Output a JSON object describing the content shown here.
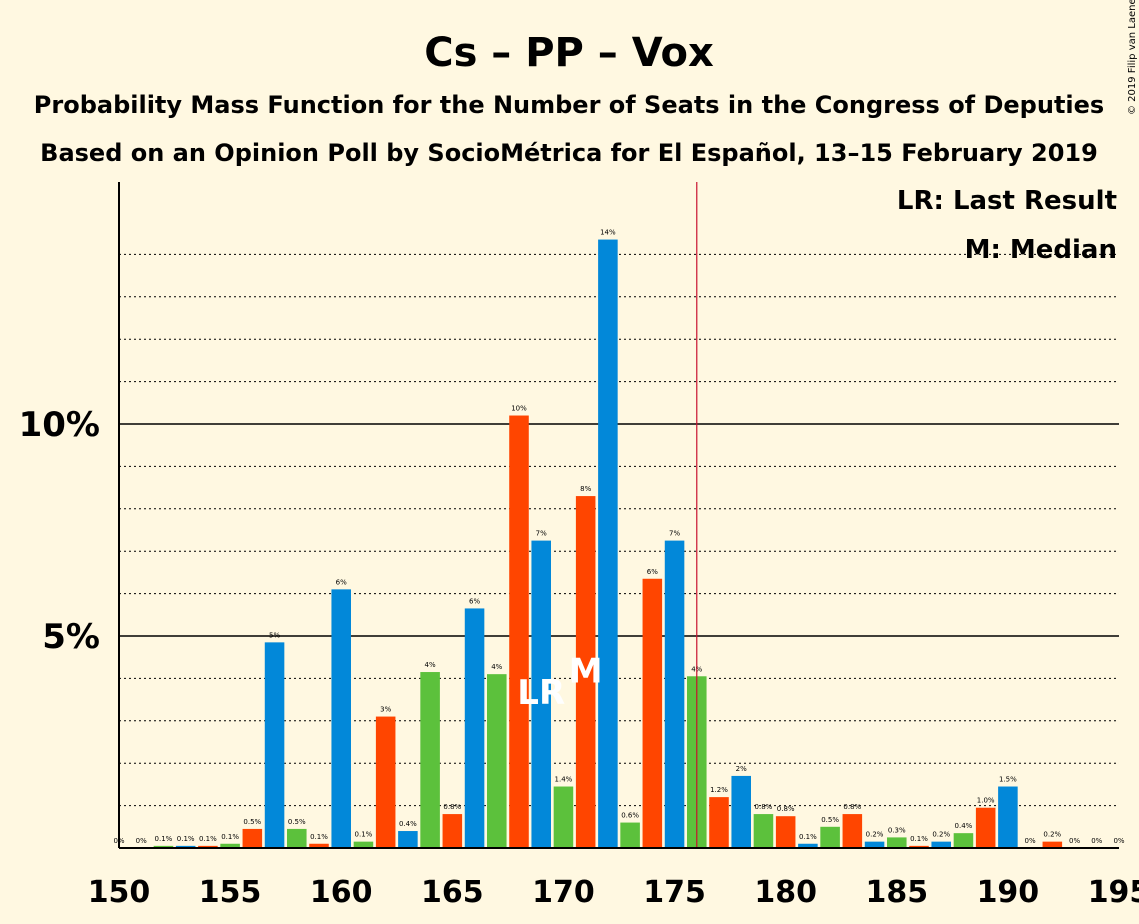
{
  "chart_data": {
    "type": "bar",
    "title": "Cs – PP – Vox",
    "subtitle": "Probability Mass Function for the Number of Seats in the Congress of Deputies",
    "subtitle2": "Based on an Opinion Poll by SocioMétrica for El Español, 13–15 February 2019",
    "copyright": "© 2019 Filip van Laenen",
    "legend": {
      "last_result": "LR: Last Result",
      "median": "M: Median"
    },
    "markers": {
      "last_result_label": "LR",
      "median_label": "M",
      "last_result_seat": 169,
      "median_seat": 171,
      "majority_line_seat": 176
    },
    "xlim": [
      150,
      195
    ],
    "ylim": [
      0,
      15.5
    ],
    "x_ticks": [
      "150",
      "155",
      "160",
      "165",
      "170",
      "175",
      "180",
      "185",
      "190",
      "195"
    ],
    "y_ticks": [
      {
        "value": 5,
        "label": "5%"
      },
      {
        "value": 10,
        "label": "10%"
      }
    ],
    "colors": {
      "blue": "#0288d9",
      "red": "#ff4500",
      "green": "#5cc13c",
      "background": "#fff8e1",
      "majority_line": "#c8102e",
      "axis": "#000000"
    },
    "bars": [
      {
        "seat": 150,
        "value": 0.0,
        "label": "0%",
        "color": "blue"
      },
      {
        "seat": 151,
        "value": 0.0,
        "label": "0%",
        "color": "red"
      },
      {
        "seat": 152,
        "value": 0.05,
        "label": "0.1%",
        "color": "green"
      },
      {
        "seat": 153,
        "value": 0.05,
        "label": "0.1%",
        "color": "blue"
      },
      {
        "seat": 154,
        "value": 0.05,
        "label": "0.1%",
        "color": "red"
      },
      {
        "seat": 155,
        "value": 0.1,
        "label": "0.1%",
        "color": "green"
      },
      {
        "seat": 156,
        "value": 0.45,
        "label": "0.5%",
        "color": "red"
      },
      {
        "seat": 157,
        "value": 4.85,
        "label": "5%",
        "color": "blue"
      },
      {
        "seat": 158,
        "value": 0.45,
        "label": "0.5%",
        "color": "green"
      },
      {
        "seat": 159,
        "value": 0.1,
        "label": "0.1%",
        "color": "red"
      },
      {
        "seat": 160,
        "value": 6.1,
        "label": "6%",
        "color": "blue"
      },
      {
        "seat": 161,
        "value": 0.15,
        "label": "0.1%",
        "color": "green"
      },
      {
        "seat": 162,
        "value": 3.1,
        "label": "3%",
        "color": "red"
      },
      {
        "seat": 163,
        "value": 0.4,
        "label": "0.4%",
        "color": "blue"
      },
      {
        "seat": 164,
        "value": 4.15,
        "label": "4%",
        "color": "green"
      },
      {
        "seat": 165,
        "value": 0.8,
        "label": "0.8%",
        "color": "red"
      },
      {
        "seat": 166,
        "value": 5.65,
        "label": "6%",
        "color": "blue"
      },
      {
        "seat": 167,
        "value": 4.1,
        "label": "4%",
        "color": "green"
      },
      {
        "seat": 168,
        "value": 10.2,
        "label": "10%",
        "color": "red"
      },
      {
        "seat": 169,
        "value": 7.25,
        "label": "7%",
        "color": "blue"
      },
      {
        "seat": 170,
        "value": 1.45,
        "label": "1.4%",
        "color": "green"
      },
      {
        "seat": 171,
        "value": 8.3,
        "label": "8%",
        "color": "red"
      },
      {
        "seat": 172,
        "value": 14.35,
        "label": "14%",
        "color": "blue"
      },
      {
        "seat": 173,
        "value": 0.6,
        "label": "0.6%",
        "color": "green"
      },
      {
        "seat": 174,
        "value": 6.35,
        "label": "6%",
        "color": "red"
      },
      {
        "seat": 175,
        "value": 7.25,
        "label": "7%",
        "color": "blue"
      },
      {
        "seat": 176,
        "value": 4.05,
        "label": "4%",
        "color": "green"
      },
      {
        "seat": 177,
        "value": 1.2,
        "label": "1.2%",
        "color": "red"
      },
      {
        "seat": 178,
        "value": 1.7,
        "label": "2%",
        "color": "blue"
      },
      {
        "seat": 179,
        "value": 0.8,
        "label": "0.8%",
        "color": "green"
      },
      {
        "seat": 180,
        "value": 0.75,
        "label": "0.8%",
        "color": "red"
      },
      {
        "seat": 181,
        "value": 0.1,
        "label": "0.1%",
        "color": "blue"
      },
      {
        "seat": 182,
        "value": 0.5,
        "label": "0.5%",
        "color": "green"
      },
      {
        "seat": 183,
        "value": 0.8,
        "label": "0.8%",
        "color": "red"
      },
      {
        "seat": 184,
        "value": 0.15,
        "label": "0.2%",
        "color": "blue"
      },
      {
        "seat": 185,
        "value": 0.25,
        "label": "0.3%",
        "color": "green"
      },
      {
        "seat": 186,
        "value": 0.05,
        "label": "0.1%",
        "color": "red"
      },
      {
        "seat": 187,
        "value": 0.15,
        "label": "0.2%",
        "color": "blue"
      },
      {
        "seat": 188,
        "value": 0.35,
        "label": "0.4%",
        "color": "green"
      },
      {
        "seat": 189,
        "value": 0.95,
        "label": "1.0%",
        "color": "red"
      },
      {
        "seat": 190,
        "value": 1.45,
        "label": "1.5%",
        "color": "blue"
      },
      {
        "seat": 191,
        "value": 0.0,
        "label": "0%",
        "color": "green"
      },
      {
        "seat": 192,
        "value": 0.15,
        "label": "0.2%",
        "color": "red"
      },
      {
        "seat": 193,
        "value": 0.0,
        "label": "0%",
        "color": "blue"
      },
      {
        "seat": 194,
        "value": 0.0,
        "label": "0%",
        "color": "green"
      },
      {
        "seat": 195,
        "value": 0.0,
        "label": "0%",
        "color": "red"
      }
    ]
  }
}
